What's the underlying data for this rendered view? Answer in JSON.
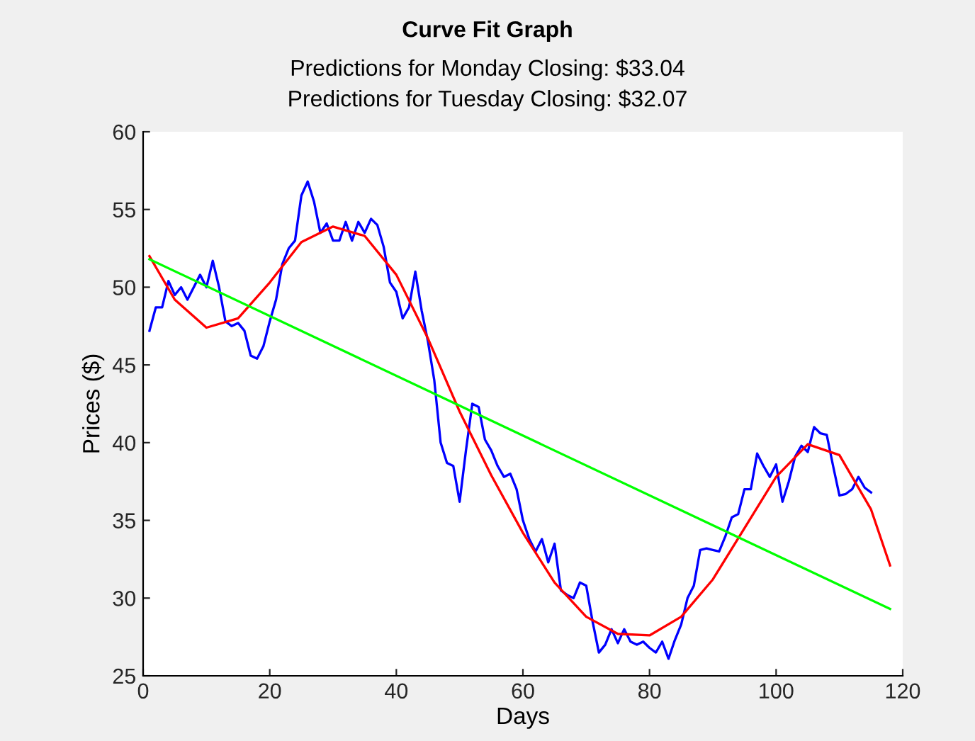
{
  "chart_data": {
    "type": "line",
    "title": "Curve Fit Graph",
    "subtitle": "Predictions for Monday Closing: $33.04\nPredictions for Tuesday Closing: $32.07",
    "xlabel": "Days",
    "ylabel": "Prices ($)",
    "xlim": [
      0,
      120
    ],
    "ylim": [
      25,
      60
    ],
    "xticks": [
      0,
      20,
      40,
      60,
      80,
      100,
      120
    ],
    "yticks": [
      25,
      30,
      35,
      40,
      45,
      50,
      55,
      60
    ],
    "grid": false,
    "legend": false,
    "marker": "none",
    "line_style": "solid",
    "series": [
      {
        "color": "#0000ff",
        "x": [
          1,
          2,
          3,
          4,
          5,
          6,
          7,
          9,
          10,
          11,
          12,
          13,
          14,
          15,
          16,
          17,
          18,
          19,
          20,
          21,
          22,
          23,
          24,
          25,
          26,
          27,
          28,
          29,
          30,
          31,
          32,
          33,
          34,
          35,
          36,
          37,
          38,
          39,
          40,
          41,
          42,
          43,
          44,
          45,
          46,
          47,
          48,
          49,
          50,
          51,
          52,
          53,
          54,
          55,
          56,
          57,
          58,
          59,
          60,
          61,
          62,
          63,
          64,
          65,
          66,
          67,
          68,
          69,
          70,
          71,
          72,
          73,
          74,
          75,
          76,
          77,
          78,
          79,
          80,
          81,
          82,
          83,
          84,
          85,
          86,
          87,
          88,
          89,
          90,
          91,
          92,
          93,
          94,
          95,
          96,
          97,
          98,
          99,
          100,
          101,
          102,
          103,
          104,
          105,
          106,
          107,
          108,
          109,
          110,
          111,
          112,
          113,
          114,
          115
        ],
        "values": [
          47.2,
          48.7,
          48.7,
          50.4,
          49.5,
          50,
          49.2,
          50.8,
          50,
          51.7,
          50,
          47.8,
          47.5,
          47.7,
          47.2,
          45.6,
          45.4,
          46.2,
          47.8,
          49.2,
          51.5,
          52.5,
          53,
          55.9,
          56.8,
          55.5,
          53.5,
          54.1,
          53,
          53,
          54.2,
          53,
          54.2,
          53.5,
          54.4,
          54,
          52.6,
          50.3,
          49.7,
          48,
          48.7,
          51,
          48.5,
          46.5,
          44,
          40,
          38.7,
          38.5,
          36.2,
          39.5,
          42.5,
          42.3,
          40.2,
          39.5,
          38.5,
          37.8,
          38,
          37,
          35,
          33.8,
          33,
          33.8,
          32.3,
          33.5,
          30.5,
          30.2,
          30,
          31,
          30.8,
          28.5,
          26.5,
          27,
          28,
          27.1,
          28,
          27.2,
          27,
          27.2,
          26.8,
          26.5,
          27.2,
          26.1,
          27.3,
          28.3,
          30,
          30.8,
          33.1,
          33.2,
          33.1,
          33,
          34,
          35.2,
          35.4,
          37,
          37,
          39.3,
          38.5,
          37.8,
          38.6,
          36.2,
          37.5,
          39.1,
          39.8,
          39.4,
          41,
          40.6,
          40.5,
          38.5,
          36.6,
          36.7,
          37,
          37.8,
          37.1,
          36.8
        ]
      },
      {
        "color": "#ff0000",
        "x": [
          1,
          5,
          10,
          15,
          20,
          25,
          30,
          35,
          40,
          45,
          50,
          55,
          60,
          65,
          70,
          75,
          80,
          85,
          90,
          95,
          100,
          105,
          110,
          115,
          118
        ],
        "values": [
          52,
          49.2,
          47.4,
          48,
          50.3,
          52.9,
          53.9,
          53.3,
          50.8,
          46.7,
          42,
          37.9,
          34.2,
          31,
          28.8,
          27.7,
          27.6,
          28.8,
          31.2,
          34.5,
          37.8,
          39.9,
          39.2,
          35.7,
          32.1
        ]
      },
      {
        "color": "#00ff00",
        "x": [
          1,
          118
        ],
        "values": [
          51.8,
          29.3
        ]
      }
    ]
  }
}
